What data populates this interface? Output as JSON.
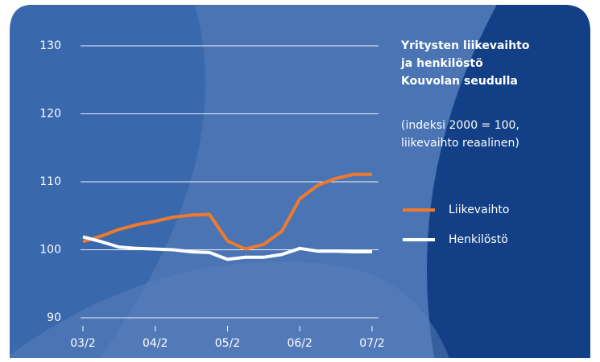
{
  "chart_data": {
    "type": "line",
    "title": [
      "Yritysten liikevaihto",
      "ja henkilöstö",
      "Kouvolan seudulla"
    ],
    "subtitle": [
      "(indeksi 2000 = 100,",
      "liikevaihto reaalinen)"
    ],
    "categories": [
      "03/2",
      null,
      null,
      null,
      "04/2",
      null,
      null,
      null,
      "05/2",
      null,
      null,
      null,
      "06/2",
      null,
      null,
      null,
      "07/2"
    ],
    "series": [
      {
        "name": "Liikevaihto",
        "color": "#f07a2c",
        "values": [
          101.2,
          102.0,
          103.0,
          103.7,
          104.2,
          104.8,
          105.1,
          105.2,
          101.3,
          100.1,
          100.8,
          102.7,
          107.5,
          109.5,
          110.5,
          111.1,
          111.1
        ]
      },
      {
        "name": "Henkilöstö",
        "color": "#ffffff",
        "values": [
          101.9,
          101.2,
          100.4,
          100.2,
          100.1,
          100.0,
          99.7,
          99.6,
          98.6,
          98.9,
          98.9,
          99.3,
          100.2,
          99.8,
          99.8,
          99.7,
          99.7
        ]
      }
    ],
    "ylim": [
      90,
      130
    ],
    "yticks": [
      90,
      100,
      110,
      120,
      130
    ],
    "grid": true
  }
}
